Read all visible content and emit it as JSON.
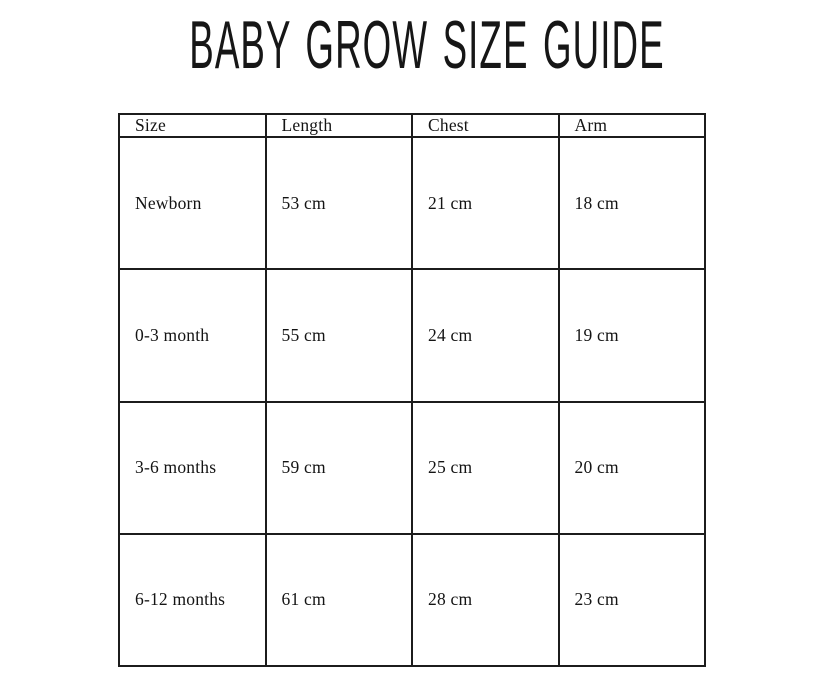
{
  "title": "BABY GROW SIZE GUIDE",
  "colors": {
    "background": "#ffffff",
    "text": "#141414",
    "border": "#1c1c1c"
  },
  "chart_data": {
    "type": "table",
    "title": "BABY GROW SIZE GUIDE",
    "columns": [
      "Size",
      "Length",
      "Chest",
      "Arm"
    ],
    "rows": [
      [
        "Newborn",
        "53 cm",
        "21 cm",
        "18 cm"
      ],
      [
        "0-3 month",
        "55 cm",
        "24 cm",
        "19 cm"
      ],
      [
        "3-6 months",
        "59 cm",
        "25 cm",
        "20 cm"
      ],
      [
        "6-12 months",
        "61 cm",
        "28 cm",
        "23 cm"
      ]
    ],
    "units": "cm",
    "layout": {
      "grid": true,
      "header_row": true,
      "alignment": "left"
    }
  }
}
